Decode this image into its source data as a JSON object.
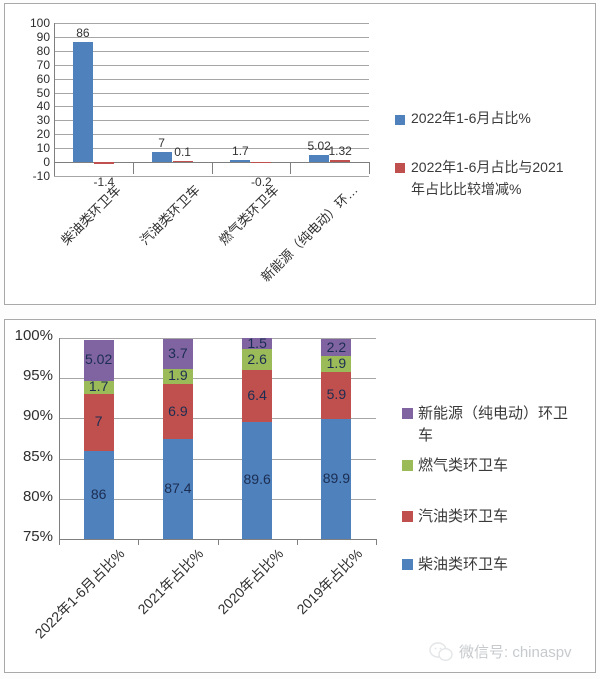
{
  "page": {
    "watermark": {
      "icon": "wechat-icon",
      "text": "微信号: chinaspv"
    }
  },
  "chart_data": [
    {
      "id": "top-bar-chart",
      "type": "bar",
      "title": "",
      "categories": [
        "柴油类环卫车",
        "汽油类环卫车",
        "燃气类环卫车",
        "新能源（纯电动）环…"
      ],
      "series": [
        {
          "name": "2022年1-6月占比%",
          "color": "#4F81BD",
          "values": [
            86,
            7,
            1.7,
            5.02
          ]
        },
        {
          "name": "2022年1-6月占比与2021年占比比较增减%",
          "color": "#C0504D",
          "values": [
            -1.4,
            0.1,
            -0.2,
            1.32
          ]
        }
      ],
      "ylim": [
        -10,
        100
      ],
      "yticks": [
        100,
        90,
        80,
        70,
        60,
        50,
        40,
        30,
        20,
        10,
        0,
        -10
      ],
      "ytick_suffix": "",
      "grid": true,
      "legend_position": "right",
      "data_labels": true
    },
    {
      "id": "bottom-stacked-chart",
      "type": "bar",
      "subtype": "stacked-100",
      "title": "",
      "categories": [
        "2022年1-6月占比%",
        "2021年占比%",
        "2020年占比%",
        "2019年占比%"
      ],
      "series": [
        {
          "name": "柴油类环卫车",
          "color": "#4F81BD",
          "values": [
            86,
            87.4,
            89.6,
            89.9
          ]
        },
        {
          "name": "汽油类环卫车",
          "color": "#C0504D",
          "values": [
            7,
            6.9,
            6.4,
            5.9
          ]
        },
        {
          "name": "燃气类环卫车",
          "color": "#9BBB59",
          "values": [
            1.7,
            1.9,
            2.6,
            1.9
          ]
        },
        {
          "name": "新能源（纯电动）环卫车",
          "color": "#8064A2",
          "values": [
            5.02,
            3.7,
            1.5,
            2.2
          ]
        }
      ],
      "ylim": [
        75,
        100
      ],
      "yticks": [
        100,
        95,
        90,
        85,
        80,
        75
      ],
      "ytick_suffix": "%",
      "grid": true,
      "legend_position": "right",
      "legend_reversed": true,
      "data_labels": true
    }
  ]
}
